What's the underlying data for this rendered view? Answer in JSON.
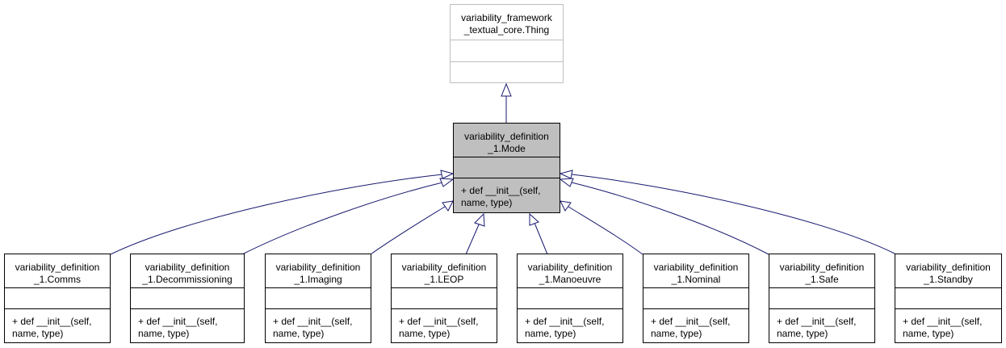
{
  "base": {
    "name_lines": [
      "variability_framework",
      "_textual_core.Thing"
    ]
  },
  "mode": {
    "name_lines": [
      "variability_definition",
      "_1.Mode"
    ],
    "method_lines": [
      "+ def __init__(self,",
      "name, type)"
    ]
  },
  "subclasses": [
    {
      "id": "comms",
      "name_lines": [
        "variability_definition",
        "_1.Comms"
      ],
      "method_lines": [
        "+ def __init__(self,",
        "name, type)"
      ]
    },
    {
      "id": "decommissioning",
      "name_lines": [
        "variability_definition",
        "_1.Decommissioning"
      ],
      "method_lines": [
        "+ def __init__(self,",
        "name, type)"
      ]
    },
    {
      "id": "imaging",
      "name_lines": [
        "variability_definition",
        "_1.Imaging"
      ],
      "method_lines": [
        "+ def __init__(self,",
        "name, type)"
      ]
    },
    {
      "id": "leop",
      "name_lines": [
        "variability_definition",
        "_1.LEOP"
      ],
      "method_lines": [
        "+ def __init__(self,",
        "name, type)"
      ]
    },
    {
      "id": "manoeuvre",
      "name_lines": [
        "variability_definition",
        "_1.Manoeuvre"
      ],
      "method_lines": [
        "+ def __init__(self,",
        "name, type)"
      ]
    },
    {
      "id": "nominal",
      "name_lines": [
        "variability_definition",
        "_1.Nominal"
      ],
      "method_lines": [
        "+ def __init__(self,",
        "name, type)"
      ]
    },
    {
      "id": "safe",
      "name_lines": [
        "variability_definition",
        "_1.Safe"
      ],
      "method_lines": [
        "+ def __init__(self,",
        "name, type)"
      ]
    },
    {
      "id": "standby",
      "name_lines": [
        "variability_definition",
        "_1.Standby"
      ],
      "method_lines": [
        "+ def __init__(self,",
        "name, type)"
      ]
    }
  ],
  "colors": {
    "edge": "#191970",
    "focus_fill": "#bfbfbf",
    "external_border": "#bfbfbf"
  }
}
